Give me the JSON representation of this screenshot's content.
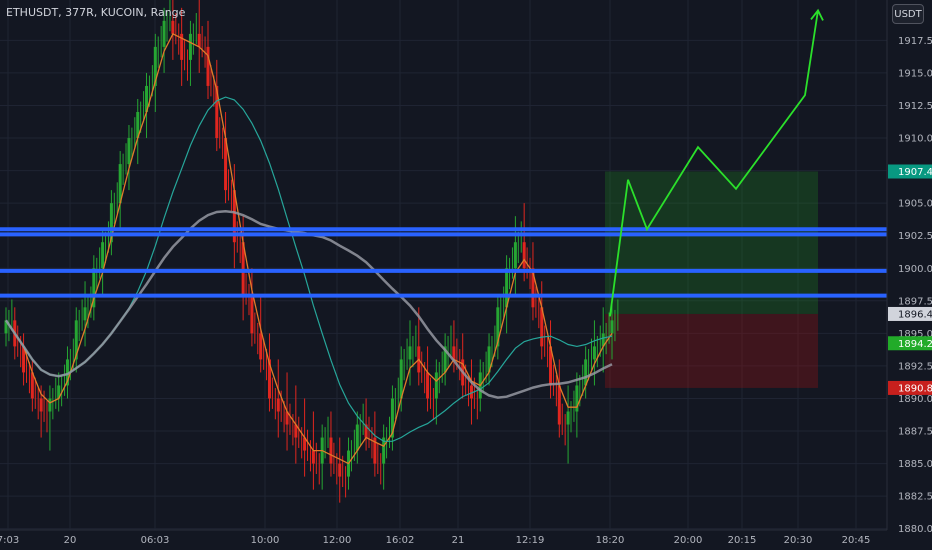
{
  "header": {
    "symbol_info": "ETHUSDT, 377R, KUCOIN, Range",
    "currency_button": "USDT"
  },
  "colors": {
    "background": "#131722",
    "grid": "#1f2433",
    "up": "#26a633",
    "down": "#e0261f",
    "hline": "#2962ff",
    "projection": "#2be02b",
    "sma_fast": "#e07b2a",
    "sma_mid": "#26a69a",
    "sma_slow": "#9598a1"
  },
  "chart_data": {
    "type": "candlestick",
    "symbol": "ETHUSDT",
    "exchange": "KUCOIN",
    "interval": "377R",
    "y_axis": {
      "ticks": [
        "1880.00",
        "1882.50",
        "1885.00",
        "1887.50",
        "1890.00",
        "1892.50",
        "1895.00",
        "1897.50",
        "1900.00",
        "1902.50",
        "1905.00",
        "1907.50",
        "1910.00",
        "1912.50",
        "1915.00",
        "1917.50"
      ],
      "range": [
        1879.9,
        1920.6
      ]
    },
    "x_axis": {
      "ticks": [
        "7:03",
        "20",
        "06:03",
        "10:00",
        "12:00",
        "16:02",
        "21",
        "12:19",
        "18:20",
        "20:00",
        "20:15",
        "20:30",
        "20:45"
      ]
    },
    "horizontal_levels": [
      1897.9,
      1899.8,
      1902.6,
      1903.0
    ],
    "position": {
      "target_price": 1907.43,
      "entry_price": 1896.49,
      "stop_price": 1890.81
    },
    "price_labels": [
      {
        "text": "1907.43",
        "value": 1907.43,
        "color": "#089981"
      },
      {
        "text": "1896.49",
        "value": 1896.49,
        "color": "#d1d4dc"
      },
      {
        "text": "1894.24",
        "value": 1894.24,
        "color": "#22ab29"
      },
      {
        "text": "1890.81",
        "value": 1890.81,
        "color": "#c8201d"
      }
    ],
    "projection_path": [
      {
        "x": "18:20",
        "y": 1896.3
      },
      {
        "x": "",
        "y": 1906.8
      },
      {
        "x": "",
        "y": 1903.0
      },
      {
        "x": "",
        "y": 1909.3
      },
      {
        "x": "20:15",
        "y": 1906.1
      },
      {
        "x": "",
        "y": 1913.3
      },
      {
        "x": "",
        "y": 1919.8
      }
    ],
    "candles_ohlc": [
      [
        1895,
        1897,
        1894,
        1896
      ],
      [
        1896,
        1897,
        1893,
        1894
      ],
      [
        1894,
        1895,
        1891,
        1892
      ],
      [
        1892,
        1893,
        1889,
        1890
      ],
      [
        1890,
        1891,
        1887,
        1889
      ],
      [
        1889,
        1891,
        1886,
        1890
      ],
      [
        1890,
        1892,
        1889,
        1891
      ],
      [
        1891,
        1894,
        1890,
        1893
      ],
      [
        1893,
        1897,
        1892,
        1896
      ],
      [
        1896,
        1899,
        1894,
        1897
      ],
      [
        1897,
        1901,
        1896,
        1900
      ],
      [
        1900,
        1903,
        1898,
        1902
      ],
      [
        1902,
        1906,
        1901,
        1905
      ],
      [
        1905,
        1909,
        1903,
        1908
      ],
      [
        1908,
        1911,
        1906,
        1910
      ],
      [
        1910,
        1913,
        1908,
        1912
      ],
      [
        1912,
        1915,
        1910,
        1914
      ],
      [
        1914,
        1918,
        1912,
        1917
      ],
      [
        1917,
        1920,
        1915,
        1919
      ],
      [
        1919,
        1921,
        1916,
        1918
      ],
      [
        1918,
        1920,
        1914,
        1916
      ],
      [
        1916,
        1919,
        1914,
        1918
      ],
      [
        1918,
        1921,
        1915,
        1917
      ],
      [
        1917,
        1919,
        1913,
        1914
      ],
      [
        1914,
        1916,
        1909,
        1910
      ],
      [
        1910,
        1912,
        1905,
        1906
      ],
      [
        1906,
        1908,
        1900,
        1902
      ],
      [
        1902,
        1904,
        1896,
        1898
      ],
      [
        1898,
        1900,
        1894,
        1895
      ],
      [
        1895,
        1898,
        1892,
        1893
      ],
      [
        1893,
        1895,
        1889,
        1890
      ],
      [
        1890,
        1893,
        1887,
        1889
      ],
      [
        1889,
        1892,
        1886,
        1888
      ],
      [
        1888,
        1891,
        1885,
        1887
      ],
      [
        1887,
        1890,
        1884,
        1886
      ],
      [
        1886,
        1889,
        1883,
        1885
      ],
      [
        1885,
        1888,
        1883,
        1887
      ],
      [
        1887,
        1889,
        1884,
        1885
      ],
      [
        1885,
        1887,
        1882,
        1884
      ],
      [
        1884,
        1887,
        1883,
        1886
      ],
      [
        1886,
        1889,
        1885,
        1888
      ],
      [
        1888,
        1890,
        1886,
        1887
      ],
      [
        1887,
        1889,
        1884,
        1885
      ],
      [
        1885,
        1888,
        1883,
        1887
      ],
      [
        1887,
        1891,
        1886,
        1890
      ],
      [
        1890,
        1894,
        1889,
        1893
      ],
      [
        1893,
        1896,
        1891,
        1894
      ],
      [
        1894,
        1897,
        1891,
        1892
      ],
      [
        1892,
        1894,
        1889,
        1890
      ],
      [
        1890,
        1893,
        1888,
        1892
      ],
      [
        1892,
        1895,
        1891,
        1894
      ],
      [
        1894,
        1896,
        1892,
        1893
      ],
      [
        1893,
        1895,
        1890,
        1891
      ],
      [
        1891,
        1893,
        1888,
        1890
      ],
      [
        1890,
        1893,
        1889,
        1892
      ],
      [
        1892,
        1895,
        1891,
        1894
      ],
      [
        1894,
        1898,
        1893,
        1897
      ],
      [
        1897,
        1901,
        1895,
        1900
      ],
      [
        1900,
        1904,
        1898,
        1902
      ],
      [
        1902,
        1905,
        1899,
        1900
      ],
      [
        1900,
        1902,
        1896,
        1897
      ],
      [
        1897,
        1899,
        1893,
        1894
      ],
      [
        1894,
        1896,
        1890,
        1891
      ],
      [
        1891,
        1893,
        1887,
        1888
      ],
      [
        1888,
        1891,
        1885,
        1889
      ],
      [
        1889,
        1892,
        1887,
        1891
      ],
      [
        1891,
        1894,
        1890,
        1893
      ],
      [
        1893,
        1896,
        1891,
        1894
      ],
      [
        1894,
        1897,
        1892,
        1895
      ],
      [
        1895,
        1898,
        1893,
        1896
      ]
    ]
  }
}
